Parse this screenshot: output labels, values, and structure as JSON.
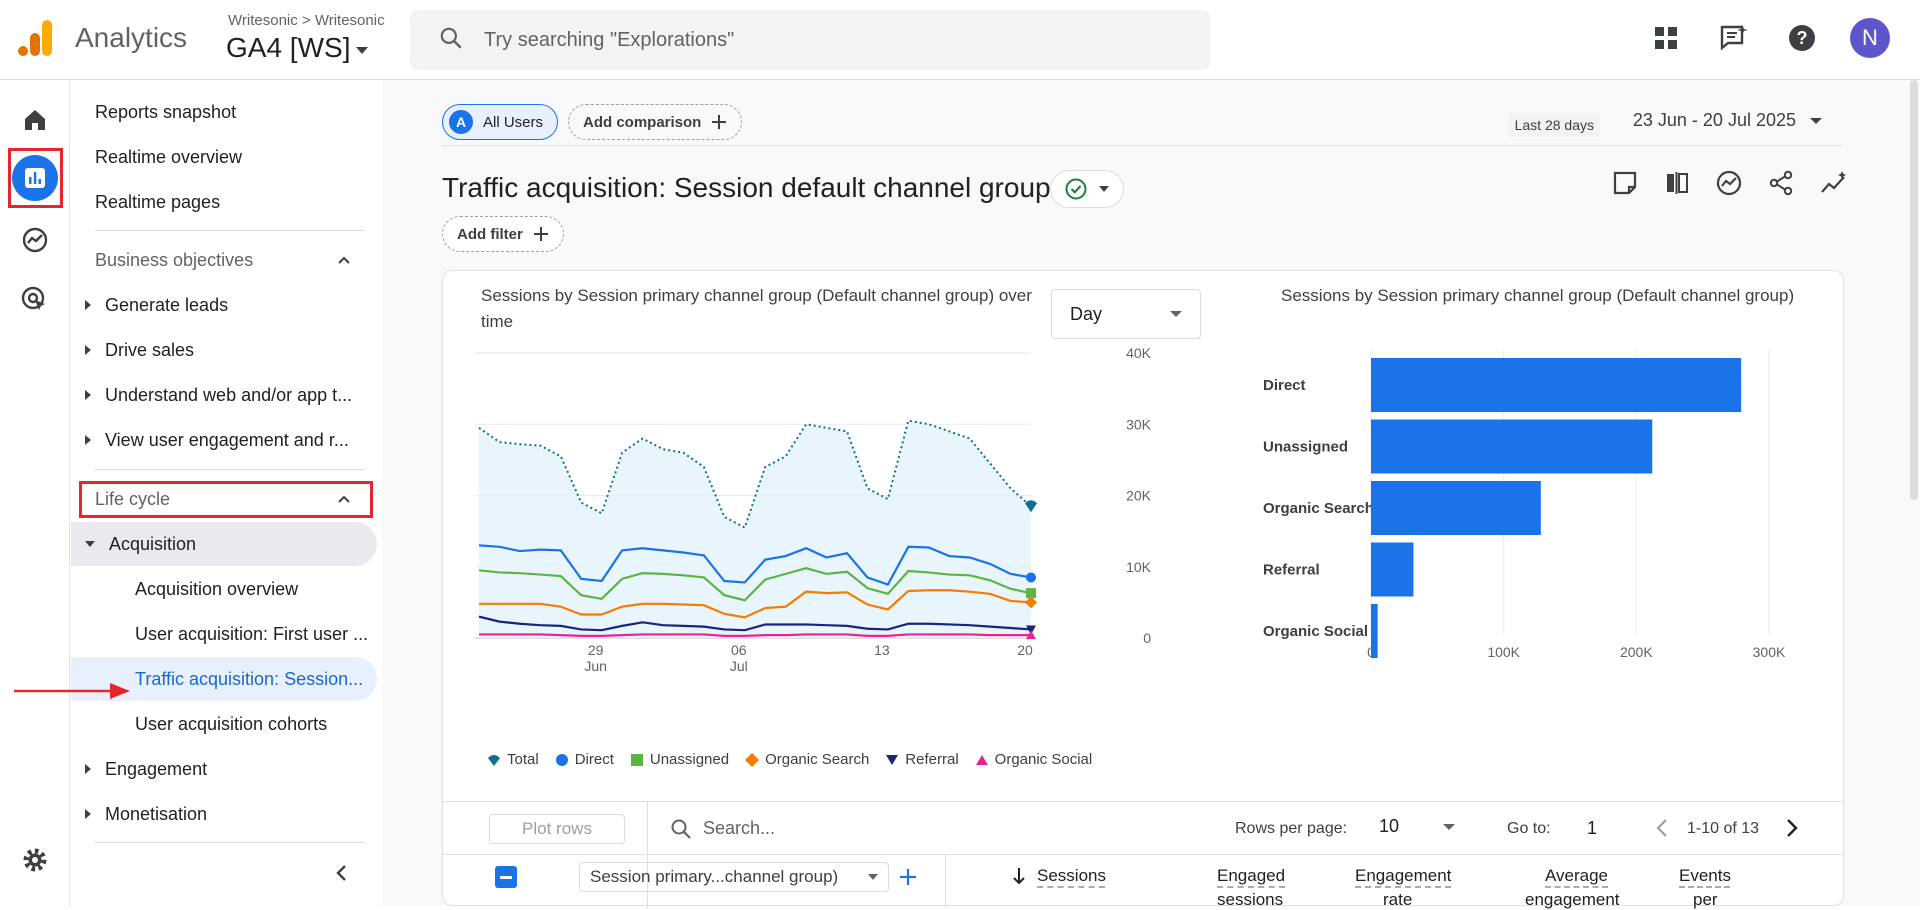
{
  "app": {
    "name": "Analytics",
    "breadcrumb": "Writesonic > Writesonic",
    "property": "GA4 [WS]"
  },
  "search": {
    "placeholder": "Try searching \"Explorations\""
  },
  "user": {
    "initial": "N"
  },
  "nav": {
    "top_items": [
      "Reports snapshot",
      "Realtime overview",
      "Realtime pages"
    ],
    "business_objectives": {
      "label": "Business objectives",
      "items": [
        "Generate leads",
        "Drive sales",
        "Understand web and/or app t...",
        "View user engagement and r..."
      ]
    },
    "life_cycle": {
      "label": "Life cycle"
    },
    "acquisition": {
      "label": "Acquisition",
      "items": [
        "Acquisition overview",
        "User acquisition: First user ...",
        "Traffic acquisition: Session...",
        "User acquisition cohorts"
      ]
    },
    "engagement": "Engagement",
    "monetisation": "Monetisation"
  },
  "toolbar": {
    "segment_letter": "A",
    "segment": "All Users",
    "add_comparison": "Add comparison",
    "date_label": "Last 28 days",
    "date_range": "23 Jun - 20 Jul 2025",
    "add_filter": "Add filter"
  },
  "page_title": "Traffic acquisition: Session default channel group",
  "line_chart": {
    "title": "Sessions by Session primary channel group (Default channel group) over time",
    "granularity": "Day"
  },
  "bar_chart": {
    "title": "Sessions by Session primary channel group (Default channel group)"
  },
  "legend": [
    "Total",
    "Direct",
    "Unassigned",
    "Organic Search",
    "Referral",
    "Organic Social"
  ],
  "table": {
    "plot_rows": "Plot rows",
    "search_placeholder": "Search...",
    "rows_per_page_label": "Rows per page:",
    "rows_per_page": "10",
    "goto_label": "Go to:",
    "goto_value": "1",
    "pagination": "1-10 of 13",
    "dimension": "Session primary...channel group)",
    "columns": [
      "Sessions",
      "Engaged",
      "Engagement",
      "Average",
      "Events"
    ],
    "columns_line2": [
      "",
      "sessions",
      "rate",
      "engagement",
      "per"
    ]
  },
  "colors": {
    "total": "#12939a",
    "direct": "#1a73e8",
    "unassigned": "#5eb341",
    "organic_search": "#f57c00",
    "referral": "#1a237e",
    "organic_social": "#e52592",
    "bar": "#1a73e8"
  },
  "chart_data": [
    {
      "type": "area",
      "title": "Sessions by Session primary channel group (Default channel group) over time",
      "x": [
        "23 Jun",
        "24 Jun",
        "25 Jun",
        "26 Jun",
        "27 Jun",
        "28 Jun",
        "29 Jun",
        "30 Jun",
        "01 Jul",
        "02 Jul",
        "03 Jul",
        "04 Jul",
        "05 Jul",
        "06 Jul",
        "07 Jul",
        "08 Jul",
        "09 Jul",
        "10 Jul",
        "11 Jul",
        "12 Jul",
        "13 Jul",
        "14 Jul",
        "15 Jul",
        "16 Jul",
        "17 Jul",
        "18 Jul",
        "19 Jul",
        "20 Jul"
      ],
      "x_ticks": [
        "29\nJun",
        "06\nJul",
        "13",
        "20"
      ],
      "y_ticks": [
        "0",
        "10K",
        "20K",
        "30K",
        "40K"
      ],
      "ylim": [
        0,
        40000
      ],
      "series": [
        {
          "name": "Total",
          "values": [
            29500,
            27500,
            27200,
            27000,
            25500,
            19000,
            17500,
            26000,
            28000,
            26500,
            26000,
            24000,
            17000,
            15500,
            24000,
            25500,
            30000,
            29500,
            29000,
            21000,
            19500,
            30500,
            30000,
            29000,
            28000,
            24500,
            21000,
            18500
          ]
        },
        {
          "name": "Direct",
          "values": [
            13000,
            12800,
            12200,
            12400,
            12300,
            8300,
            8000,
            12300,
            12600,
            12300,
            12000,
            11600,
            8000,
            7800,
            11000,
            11500,
            12600,
            11300,
            11900,
            8500,
            7500,
            12800,
            12700,
            11500,
            11300,
            10400,
            9000,
            8500
          ]
        },
        {
          "name": "Unassigned",
          "values": [
            9500,
            9200,
            9100,
            8900,
            8700,
            6000,
            5500,
            8300,
            9100,
            9000,
            8800,
            8500,
            6000,
            5300,
            8200,
            9000,
            9800,
            9000,
            9300,
            7000,
            6200,
            9400,
            9200,
            8900,
            8800,
            8100,
            6900,
            6300
          ]
        },
        {
          "name": "Organic Search",
          "values": [
            4800,
            4800,
            4800,
            4800,
            4400,
            3300,
            3300,
            4400,
            4800,
            4800,
            4700,
            4600,
            3400,
            2900,
            4200,
            4400,
            6500,
            6300,
            6400,
            4700,
            4000,
            6600,
            6700,
            6700,
            6500,
            6200,
            5200,
            5000
          ]
        },
        {
          "name": "Referral",
          "values": [
            3000,
            2300,
            2000,
            1800,
            1700,
            1200,
            1100,
            1700,
            2200,
            1800,
            1700,
            1600,
            1200,
            1100,
            1900,
            1900,
            1900,
            1800,
            1700,
            1300,
            1200,
            2000,
            2000,
            1900,
            1800,
            1600,
            1400,
            1200
          ]
        },
        {
          "name": "Organic Social",
          "values": [
            500,
            500,
            500,
            500,
            400,
            300,
            300,
            400,
            500,
            500,
            500,
            500,
            300,
            300,
            400,
            400,
            500,
            500,
            500,
            300,
            300,
            500,
            500,
            500,
            500,
            400,
            400,
            400
          ]
        }
      ]
    },
    {
      "type": "bar",
      "orientation": "horizontal",
      "title": "Sessions by Session primary channel group (Default channel group)",
      "categories": [
        "Direct",
        "Unassigned",
        "Organic Search",
        "Referral",
        "Organic Social"
      ],
      "values": [
        279000,
        212000,
        128000,
        32000,
        5000
      ],
      "x_ticks": [
        "0",
        "100K",
        "200K",
        "300K"
      ],
      "xlim": [
        0,
        300000
      ]
    }
  ]
}
